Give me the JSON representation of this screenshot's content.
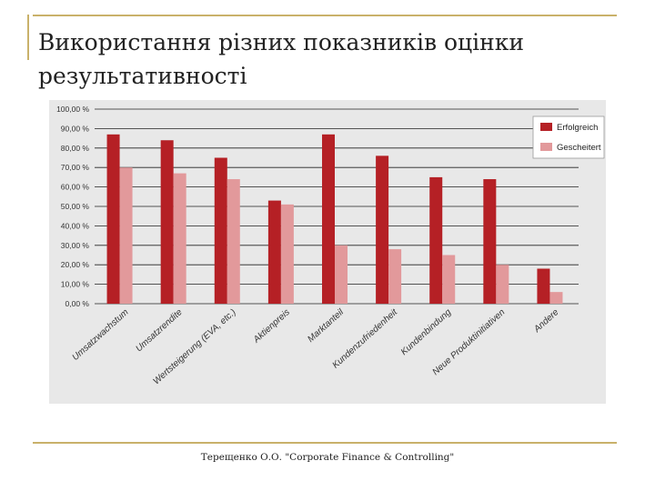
{
  "slide": {
    "title": "Використання різних показників оцінки результативності",
    "footer": "Терещенко О.О. \"Corporate Finance & Controlling\""
  },
  "colors": {
    "series1": "#b52025",
    "series2": "#e2999b",
    "grid": "#222222",
    "chart_bg": "#e8e8e8"
  },
  "chart_data": {
    "type": "bar",
    "categories": [
      "Umsatzwachstum",
      "Umsatzrendite",
      "Wertsteigerung (EVA, etc.)",
      "Aktienpreis",
      "Marktanteil",
      "Kundenzufriedenheit",
      "Kundenbindung",
      "Neue Produktinitiativen",
      "Andere"
    ],
    "series": [
      {
        "name": "Erfolgreich",
        "values": [
          87,
          84,
          75,
          53,
          87,
          76,
          65,
          64,
          18
        ]
      },
      {
        "name": "Gescheitert",
        "values": [
          70,
          67,
          64,
          51,
          30,
          28,
          25,
          20,
          6
        ]
      }
    ],
    "y_ticks": [
      "0,00 %",
      "10,00 %",
      "20,00 %",
      "30,00 %",
      "40,00 %",
      "50,00 %",
      "60,00 %",
      "70,00 %",
      "80,00 %",
      "90,00 %",
      "100,00 %"
    ],
    "ylim": [
      0,
      100
    ],
    "grid": true,
    "legend_position": "top-right"
  }
}
